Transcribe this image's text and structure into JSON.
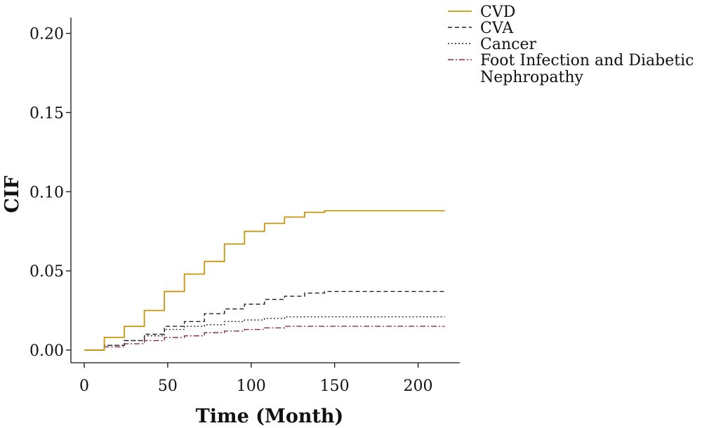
{
  "chart_data": {
    "type": "line",
    "step": true,
    "xlabel": "Time (Month)",
    "ylabel": "CIF",
    "xlim": [
      -8,
      225
    ],
    "ylim": [
      -0.008,
      0.21
    ],
    "xticks": [
      0,
      50,
      100,
      150,
      200
    ],
    "yticks": [
      0.0,
      0.05,
      0.1,
      0.15,
      0.2
    ],
    "xtick_labels": [
      "0",
      "50",
      "100",
      "150",
      "200"
    ],
    "ytick_labels": [
      "0.00",
      "0.05",
      "0.10",
      "0.15",
      "0.20"
    ],
    "grid": false,
    "legend_position": "top-right",
    "series": [
      {
        "name": "CVD",
        "color": "#c8960c",
        "dash": "solid",
        "x": [
          0,
          12,
          24,
          36,
          48,
          60,
          72,
          84,
          96,
          108,
          120,
          132,
          144,
          216
        ],
        "y": [
          0.0,
          0.008,
          0.015,
          0.025,
          0.037,
          0.048,
          0.056,
          0.067,
          0.075,
          0.08,
          0.084,
          0.087,
          0.088,
          0.088
        ]
      },
      {
        "name": "CVA",
        "color": "#222222",
        "dash": "dashed",
        "x": [
          0,
          12,
          24,
          36,
          48,
          60,
          72,
          84,
          96,
          108,
          120,
          132,
          144,
          216
        ],
        "y": [
          0.0,
          0.003,
          0.006,
          0.01,
          0.015,
          0.018,
          0.023,
          0.026,
          0.029,
          0.032,
          0.034,
          0.036,
          0.037,
          0.037
        ]
      },
      {
        "name": "Cancer",
        "color": "#222222",
        "dash": "dotted",
        "x": [
          0,
          12,
          24,
          36,
          48,
          60,
          72,
          84,
          96,
          108,
          120,
          132,
          144,
          216
        ],
        "y": [
          0.0,
          0.003,
          0.006,
          0.009,
          0.013,
          0.015,
          0.016,
          0.018,
          0.019,
          0.02,
          0.021,
          0.021,
          0.021,
          0.021
        ]
      },
      {
        "name": "Foot Infection and Diabetic Nephropathy",
        "color": "#8a2a52",
        "dash": "dashdot",
        "x": [
          0,
          12,
          24,
          36,
          48,
          60,
          72,
          84,
          96,
          108,
          120,
          132,
          144,
          216
        ],
        "y": [
          0.0,
          0.002,
          0.004,
          0.006,
          0.008,
          0.009,
          0.011,
          0.012,
          0.013,
          0.014,
          0.015,
          0.015,
          0.015,
          0.015
        ]
      }
    ],
    "legend": {
      "entries": [
        [
          "CVD"
        ],
        [
          "CVA"
        ],
        [
          "Cancer"
        ],
        [
          "Foot Infection and Diabetic",
          "Nephropathy"
        ]
      ]
    }
  }
}
